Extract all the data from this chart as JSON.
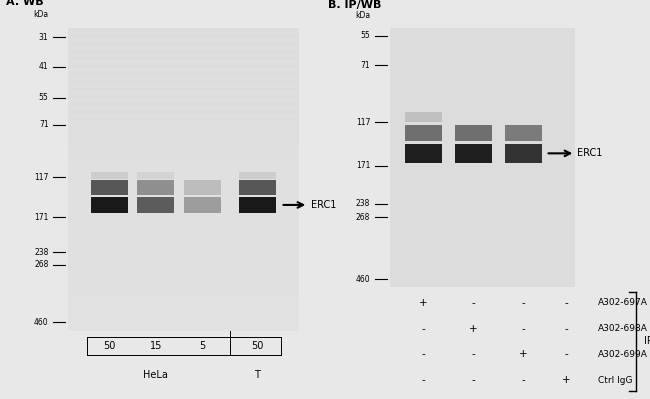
{
  "panel_A_title": "A. WB",
  "panel_B_title": "B. IP/WB",
  "fig_bg": "#e8e8e8",
  "gel_bg_A": "#dcdcdc",
  "gel_bg_B": "#d8d8d8",
  "marker_labels_A": [
    "460",
    "268",
    "238",
    "171",
    "117",
    "71",
    "55",
    "41",
    "31"
  ],
  "mw_A": [
    460,
    268,
    238,
    171,
    117,
    71,
    55,
    41,
    31
  ],
  "marker_labels_B": [
    "460",
    "268",
    "238",
    "171",
    "117",
    "71",
    "55"
  ],
  "mw_B": [
    460,
    268,
    238,
    171,
    117,
    71,
    55
  ],
  "kda_label": "kDa",
  "panel_A_xlabel_vals": [
    "50",
    "15",
    "5",
    "50"
  ],
  "panel_B_rows": [
    [
      "+",
      "-",
      "-",
      "-",
      "A302-697A"
    ],
    [
      "-",
      "+",
      "-",
      "-",
      "A302-698A"
    ],
    [
      "-",
      "-",
      "+",
      "-",
      "A302-699A"
    ],
    [
      "-",
      "-",
      "-",
      "+",
      "Ctrl IgG"
    ]
  ],
  "IP_label": "IP",
  "ERC1_label": "ERC1",
  "lane_intensities_A": [
    0.92,
    0.62,
    0.32,
    0.92
  ],
  "lane_intensities_B": [
    0.95,
    0.95,
    0.85,
    0.0
  ]
}
